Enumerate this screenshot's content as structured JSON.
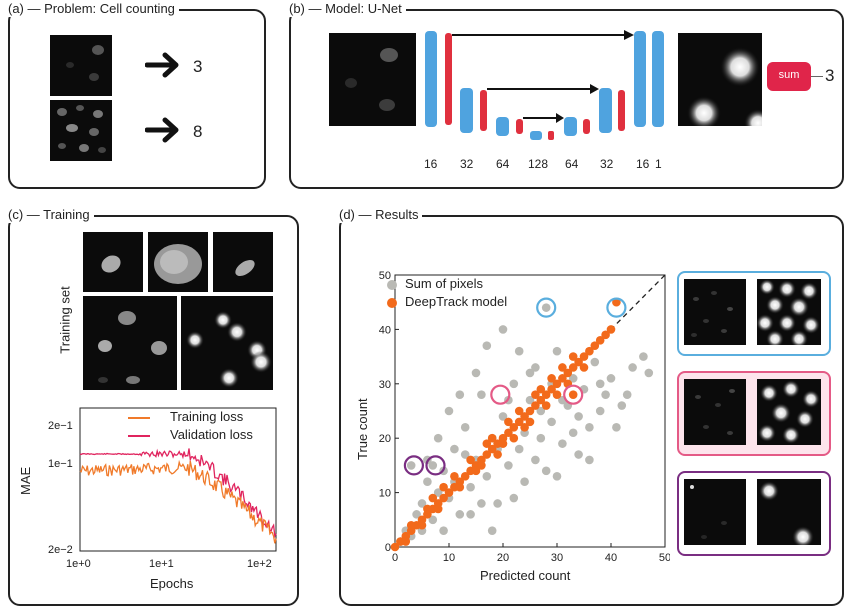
{
  "panel_a": {
    "title": "(a) — Problem: Cell counting",
    "counts": [
      "3",
      "8"
    ]
  },
  "panel_b": {
    "title": "(b) — Model: U-Net",
    "layer_labels": [
      "16",
      "32",
      "64",
      "128",
      "64",
      "32",
      "16",
      "1"
    ],
    "sum_label": "sum",
    "output_count": "3"
  },
  "panel_c": {
    "title": "(c) — Training",
    "training_set_label": "Training set",
    "legend": [
      "Training loss",
      "Validation loss"
    ],
    "ylabel": "MAE",
    "xlabel": "Epochs",
    "yticks": [
      "2e−1",
      "1e−1",
      "2e−2"
    ],
    "xticks": [
      "1e+0",
      "1e+1",
      "1e+2"
    ],
    "colors": {
      "training": "#f07a2a",
      "validation": "#e0245e"
    }
  },
  "panel_d": {
    "title": "(d) — Results",
    "colors": {
      "sum_of_pixels": "#b9b9b4",
      "deeptrack": "#f26a1b",
      "blue_ring": "#5aaede",
      "pink_ring": "#e45a86",
      "purple_ring": "#7a2e82"
    }
  },
  "chart_data": {
    "type": "scatter",
    "xlabel": "Predicted count",
    "ylabel": "True count",
    "xlim": [
      0,
      50
    ],
    "ylim": [
      0,
      50
    ],
    "xticks": [
      0,
      10,
      20,
      30,
      40,
      50
    ],
    "yticks": [
      0,
      10,
      20,
      30,
      40,
      50
    ],
    "legend_position": "top-left",
    "series": [
      {
        "name": "Sum of pixels",
        "points": [
          [
            1,
            1
          ],
          [
            2,
            3
          ],
          [
            3,
            2
          ],
          [
            4,
            6
          ],
          [
            5,
            3
          ],
          [
            5,
            8
          ],
          [
            6,
            12
          ],
          [
            7,
            5
          ],
          [
            8,
            10
          ],
          [
            9,
            14
          ],
          [
            10,
            9
          ],
          [
            11,
            18
          ],
          [
            12,
            6
          ],
          [
            13,
            22
          ],
          [
            14,
            11
          ],
          [
            15,
            16
          ],
          [
            16,
            28
          ],
          [
            17,
            13
          ],
          [
            18,
            20
          ],
          [
            19,
            8
          ],
          [
            20,
            24
          ],
          [
            21,
            15
          ],
          [
            22,
            30
          ],
          [
            23,
            18
          ],
          [
            24,
            12
          ],
          [
            25,
            27
          ],
          [
            26,
            33
          ],
          [
            27,
            20
          ],
          [
            28,
            44
          ],
          [
            28,
            14
          ],
          [
            29,
            23
          ],
          [
            30,
            36
          ],
          [
            31,
            19
          ],
          [
            32,
            26
          ],
          [
            33,
            31
          ],
          [
            34,
            17
          ],
          [
            35,
            29
          ],
          [
            36,
            22
          ],
          [
            37,
            34
          ],
          [
            38,
            25
          ],
          [
            39,
            28
          ],
          [
            40,
            31
          ],
          [
            42,
            26
          ],
          [
            44,
            33
          ],
          [
            46,
            35
          ],
          [
            47,
            32
          ],
          [
            10,
            25
          ],
          [
            12,
            28
          ],
          [
            15,
            32
          ],
          [
            17,
            37
          ],
          [
            20,
            40
          ],
          [
            23,
            36
          ],
          [
            25,
            32
          ],
          [
            8,
            20
          ],
          [
            14,
            6
          ],
          [
            18,
            3
          ],
          [
            22,
            9
          ],
          [
            26,
            16
          ],
          [
            30,
            13
          ],
          [
            33,
            21
          ],
          [
            36,
            16
          ],
          [
            41,
            22
          ],
          [
            43,
            28
          ],
          [
            6,
            16
          ],
          [
            9,
            3
          ],
          [
            3,
            15
          ],
          [
            7,
            15
          ],
          [
            11,
            12
          ],
          [
            16,
            8
          ],
          [
            19,
            18
          ],
          [
            24,
            21
          ],
          [
            27,
            25
          ],
          [
            29,
            30
          ],
          [
            31,
            27
          ],
          [
            34,
            24
          ],
          [
            38,
            30
          ],
          [
            21,
            27
          ],
          [
            13,
            17
          ]
        ]
      },
      {
        "name": "DeepTrack model",
        "points": [
          [
            0,
            0
          ],
          [
            1,
            1
          ],
          [
            2,
            2
          ],
          [
            3,
            3
          ],
          [
            4,
            4
          ],
          [
            5,
            5
          ],
          [
            6,
            6
          ],
          [
            7,
            7
          ],
          [
            8,
            8
          ],
          [
            9,
            9
          ],
          [
            10,
            10
          ],
          [
            11,
            11
          ],
          [
            12,
            12
          ],
          [
            13,
            13
          ],
          [
            14,
            14
          ],
          [
            15,
            15
          ],
          [
            16,
            16
          ],
          [
            17,
            17
          ],
          [
            18,
            18
          ],
          [
            19,
            19
          ],
          [
            20,
            20
          ],
          [
            21,
            21
          ],
          [
            22,
            22
          ],
          [
            23,
            23
          ],
          [
            24,
            24
          ],
          [
            25,
            25
          ],
          [
            26,
            26
          ],
          [
            27,
            27
          ],
          [
            28,
            28
          ],
          [
            29,
            29
          ],
          [
            30,
            30
          ],
          [
            31,
            31
          ],
          [
            32,
            32
          ],
          [
            33,
            33
          ],
          [
            34,
            34
          ],
          [
            35,
            35
          ],
          [
            36,
            36
          ],
          [
            37,
            37
          ],
          [
            38,
            38
          ],
          [
            39,
            39
          ],
          [
            40,
            40
          ],
          [
            3,
            4
          ],
          [
            5,
            4
          ],
          [
            6,
            7
          ],
          [
            8,
            7
          ],
          [
            9,
            11
          ],
          [
            12,
            11
          ],
          [
            14,
            16
          ],
          [
            16,
            15
          ],
          [
            18,
            20
          ],
          [
            19,
            17
          ],
          [
            21,
            23
          ],
          [
            22,
            20
          ],
          [
            23,
            25
          ],
          [
            25,
            23
          ],
          [
            26,
            28
          ],
          [
            28,
            26
          ],
          [
            29,
            31
          ],
          [
            30,
            28
          ],
          [
            31,
            33
          ],
          [
            32,
            30
          ],
          [
            33,
            35
          ],
          [
            35,
            33
          ],
          [
            41,
            45
          ],
          [
            33,
            28
          ],
          [
            20,
            19
          ],
          [
            24,
            22
          ],
          [
            27,
            29
          ],
          [
            17,
            19
          ],
          [
            15,
            14
          ],
          [
            11,
            13
          ],
          [
            7,
            9
          ],
          [
            2,
            1
          ]
        ]
      }
    ],
    "highlights": [
      {
        "color": "blue",
        "x": 28,
        "y": 44
      },
      {
        "color": "blue",
        "x": 41,
        "y": 44
      },
      {
        "color": "pink",
        "x": 19.5,
        "y": 28
      },
      {
        "color": "pink",
        "x": 33,
        "y": 28
      },
      {
        "color": "purple",
        "x": 3.5,
        "y": 15
      },
      {
        "color": "purple",
        "x": 7.5,
        "y": 15
      }
    ]
  }
}
